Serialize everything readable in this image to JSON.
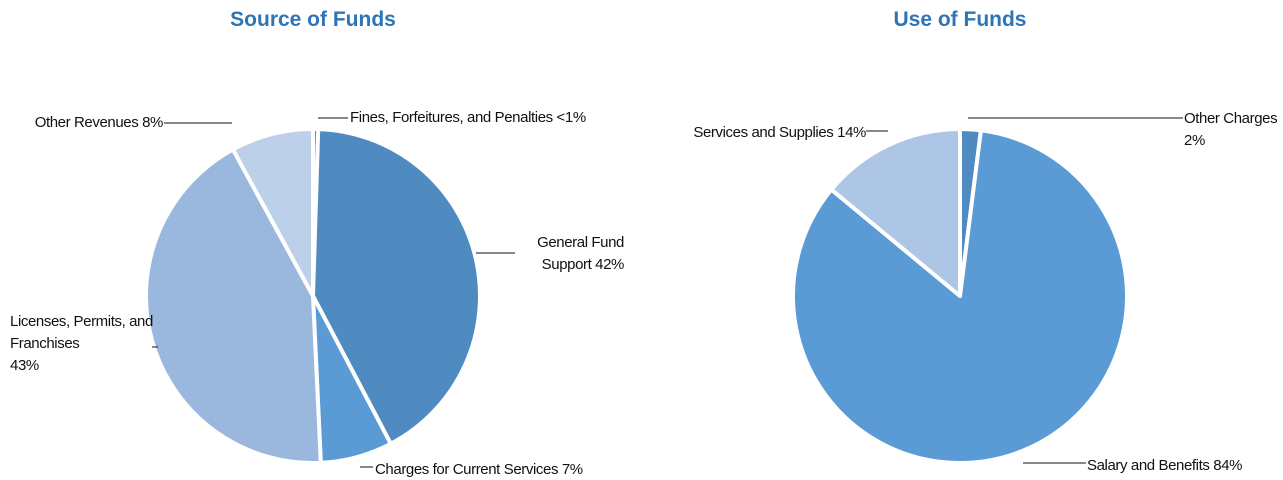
{
  "chart_data": [
    {
      "type": "pie",
      "title": "Source of Funds",
      "categories": [
        "Fines, Forfeitures, and Penalties",
        "General Fund Support",
        "Charges for Current Services",
        "Licenses, Permits, and Franchises",
        "Other Revenues"
      ],
      "values": [
        0.5,
        42,
        7,
        43,
        8
      ],
      "value_labels": [
        "<1%",
        "42%",
        "7%",
        "43%",
        "8%"
      ],
      "colors": [
        "#4f8bc0",
        "#4f8bc0",
        "#5b9bd5",
        "#9ab8de",
        "#bcd0ea"
      ]
    },
    {
      "type": "pie",
      "title": "Use of Funds",
      "categories": [
        "Other Charges",
        "Salary and Benefits",
        "Services and Supplies"
      ],
      "values": [
        2,
        84,
        14
      ],
      "value_labels": [
        "2%",
        "84%",
        "14%"
      ],
      "colors": [
        "#4f8bc0",
        "#5b9bd5",
        "#aec6e6"
      ]
    }
  ]
}
